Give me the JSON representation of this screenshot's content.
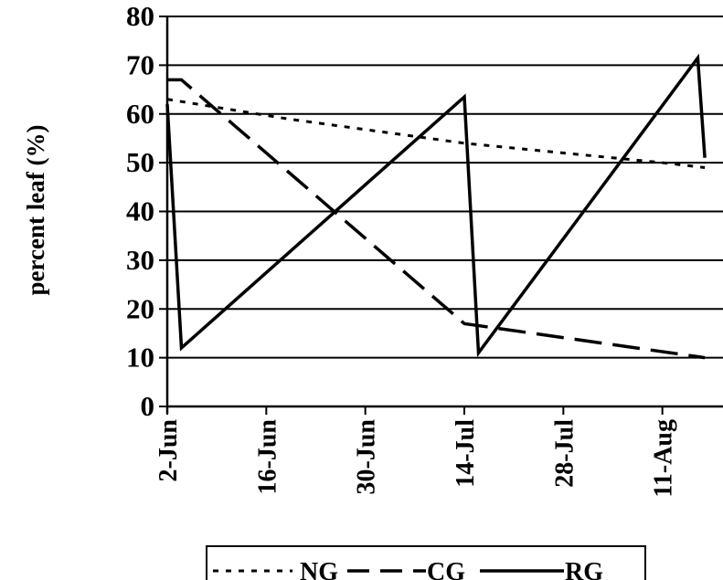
{
  "chart_data": {
    "type": "line",
    "title": "",
    "xlabel": "",
    "ylabel": "percent leaf (%)",
    "ylim": [
      0,
      80
    ],
    "yticks": [
      0,
      10,
      20,
      30,
      40,
      50,
      60,
      70,
      80
    ],
    "grid": "horizontal",
    "legend_position": "bottom",
    "x_ticks": [
      {
        "label": "2-Jun",
        "date": "2024-06-02"
      },
      {
        "label": "16-Jun",
        "date": "2024-06-16"
      },
      {
        "label": "30-Jun",
        "date": "2024-06-30"
      },
      {
        "label": "14-Jul",
        "date": "2024-07-14"
      },
      {
        "label": "28-Jul",
        "date": "2024-07-28"
      },
      {
        "label": "11-Aug",
        "date": "2024-08-11"
      }
    ],
    "xlim": [
      "2024-06-02",
      "2024-08-17"
    ],
    "series": [
      {
        "name": "NG",
        "style": "dotted",
        "points": [
          {
            "x": "2024-06-02",
            "y": 63
          },
          {
            "x": "2024-06-19",
            "y": 59
          },
          {
            "x": "2024-07-14",
            "y": 54
          },
          {
            "x": "2024-08-11",
            "y": 50
          },
          {
            "x": "2024-08-17",
            "y": 49
          }
        ]
      },
      {
        "name": "CG",
        "style": "dashed",
        "points": [
          {
            "x": "2024-06-02",
            "y": 67
          },
          {
            "x": "2024-06-04",
            "y": 67
          },
          {
            "x": "2024-07-14",
            "y": 17
          },
          {
            "x": "2024-08-17",
            "y": 10
          }
        ]
      },
      {
        "name": "RG",
        "style": "solid",
        "points": [
          {
            "x": "2024-06-02",
            "y": 62
          },
          {
            "x": "2024-06-04",
            "y": 12
          },
          {
            "x": "2024-07-14",
            "y": 63.5
          },
          {
            "x": "2024-07-16",
            "y": 11
          },
          {
            "x": "2024-08-16",
            "y": 71.5
          },
          {
            "x": "2024-08-17",
            "y": 51
          }
        ]
      }
    ]
  }
}
